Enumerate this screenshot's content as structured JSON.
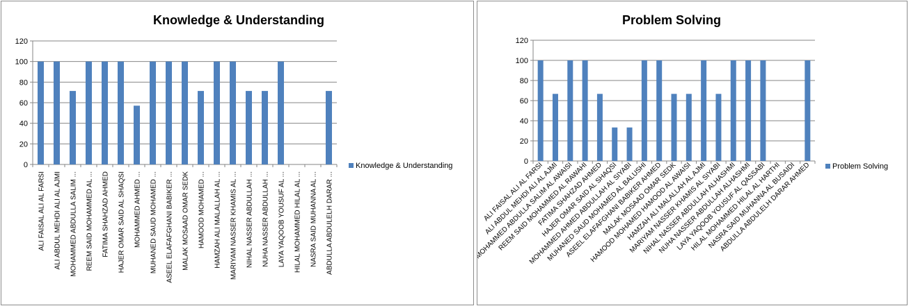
{
  "colors": {
    "bar": "#4f81bd",
    "axis": "#868686",
    "grid": "#868686",
    "text": "#000000"
  },
  "chart_data": [
    {
      "type": "bar",
      "title": "Knowledge & Understanding",
      "xlabel": "",
      "ylabel": "",
      "ylim": [
        0,
        120
      ],
      "yticks": [
        0,
        20,
        40,
        60,
        80,
        100,
        120
      ],
      "grid": true,
      "legend": "right",
      "categories": [
        "ALI FAISAL ALI AL FARSI",
        "ALI ABDUL MEHDI ALI AL AJMI",
        "MOHAMMED ABDULLA SALIM ...",
        "REEM SAID MOHAMMED AL ...",
        "FATIMA  SHAHZAD AHMED",
        "HAJER OMAR SAID AL SHAQSI",
        "MOHAMMED AHMED ...",
        "MUHANED SAUD MOHAMED ...",
        "ASEEL ELAFAFGHANI BABIKER ...",
        "MALAK MOSAAD OMAR SEDK",
        "HAMOOD MOHAMED ...",
        "HAMZAH ALI MALALLAH AL ...",
        "MARIYAM NASSER KHAMIS AL ...",
        "NIHAL NASSER ABDULLAH ...",
        "NUHA NASSER ABDULLAH ...",
        "LAYA YAQOOB YOUSUF AL ...",
        "HILAL MOHAMMED HILAL AL ...",
        "NASRA SAID MUHANNA  AL ...",
        "ABDULLA  ABDULELH DARAR ..."
      ],
      "series": [
        {
          "name": "Knowledge & Understanding",
          "values": [
            100,
            100,
            71.4,
            100,
            100,
            100,
            57.1,
            100,
            100,
            100,
            71.4,
            100,
            100,
            71.4,
            71.4,
            100,
            0,
            0,
            71.4
          ]
        }
      ]
    },
    {
      "type": "bar",
      "title": "Problem Solving",
      "xlabel": "",
      "ylabel": "",
      "ylim": [
        0,
        120
      ],
      "yticks": [
        0,
        20,
        40,
        60,
        80,
        100,
        120
      ],
      "grid": true,
      "legend": "right",
      "categories": [
        "ALI FAISAL ALI AL FARSI",
        "ALI ABDUL MEHDI ALI AL AJMI",
        "MOHAMMED ABDULLA SALIM AL AWAISI",
        "REEM SAID MOHAMMED AL RAWAHI",
        "FATIMA  SHAHZAD AHMED",
        "HAJER OMAR SAID AL SHAQSI",
        "MOHAMMED AHMED ABDULLAH AL SIYABI",
        "MUHANED SAUD MOHAMED AL BALUSHI",
        "ASEEL ELAFAFGHANI BABIKER AHMED",
        "MALAK MOSAAD OMAR SEDK",
        "HAMOOD MOHAMED HAMOOD AL AWAISI",
        "HAMZAH ALI MALALLAH AL AJMI",
        "MARIYAM NASSER KHAMIS AL SIYABI",
        "NIHAL NASSER ABDULLAH ALHASHMI",
        "NUHA NASSER ABDULLAH ALHASHMI",
        "LAYA YAQOOB YOUSUF AL QASSABI",
        "HILAL MOHAMMED HILAL AL HARTHI",
        "NASRA SAID MUHANNA  AL BUSAIDI",
        "ABDULLA  ABDULELH DARAR AHMED"
      ],
      "series": [
        {
          "name": "Problem Solving",
          "values": [
            100,
            66.7,
            100,
            100,
            66.7,
            33.3,
            33.3,
            100,
            100,
            66.7,
            66.7,
            100,
            66.7,
            100,
            100,
            100,
            0,
            0,
            100
          ]
        }
      ]
    }
  ]
}
